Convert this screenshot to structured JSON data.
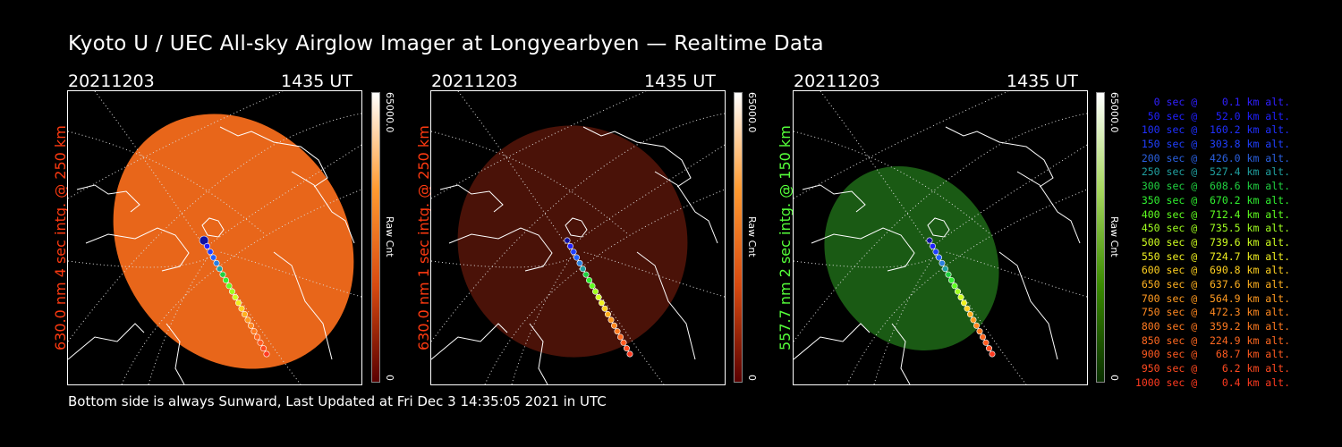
{
  "title": "Kyoto U / UEC All-sky Airglow Imager at Longyearbyen — Realtime Data",
  "footer": "Bottom side is always Sunward, Last Updated at Fri Dec  3 14:35:05 2021 in UTC",
  "panels": [
    {
      "date": "20211203",
      "time": "1435 UT",
      "ylabel": "630.0 nm 4 sec intg. @ 250 km",
      "label_color": "#ff3a10",
      "cbar_max": "65000.0",
      "cbar_label": "Raw Cnt",
      "cbar_min": "0",
      "cbar_colors": [
        "#5a0000",
        "#d84a10",
        "#ff9a30",
        "#ffffff"
      ],
      "disc_color": "#e8661a"
    },
    {
      "date": "20211203",
      "time": "1435 UT",
      "ylabel": "630.0 nm 1 sec intg. @ 250 km",
      "label_color": "#ff3a10",
      "cbar_max": "65000.0",
      "cbar_label": "Raw Cnt",
      "cbar_min": "0",
      "cbar_colors": [
        "#5a0000",
        "#d84a10",
        "#ff9a30",
        "#ffffff"
      ],
      "disc_color": "#4a1208"
    },
    {
      "date": "20211203",
      "time": "1435 UT",
      "ylabel": "557.7 nm 2 sec intg. @ 150 km",
      "label_color": "#55ff3a",
      "cbar_max": "65000.0",
      "cbar_label": "Raw Cnt",
      "cbar_min": "0",
      "cbar_colors": [
        "#0a3000",
        "#3a8a00",
        "#a8d860",
        "#ffffff"
      ],
      "disc_color": "#1a5a14"
    }
  ],
  "legend": [
    {
      "text": "   0 sec @    0.1 km alt.",
      "color": "#3020ff"
    },
    {
      "text": "  50 sec @   52.0 km alt.",
      "color": "#2020ff"
    },
    {
      "text": " 100 sec @  160.2 km alt.",
      "color": "#2030ff"
    },
    {
      "text": " 150 sec @  303.8 km alt.",
      "color": "#2040ff"
    },
    {
      "text": " 200 sec @  426.0 km alt.",
      "color": "#2a60e0"
    },
    {
      "text": " 250 sec @  527.4 km alt.",
      "color": "#20a0a0"
    },
    {
      "text": " 300 sec @  608.6 km alt.",
      "color": "#20d040"
    },
    {
      "text": " 350 sec @  670.2 km alt.",
      "color": "#30f030"
    },
    {
      "text": " 400 sec @  712.4 km alt.",
      "color": "#60ff20"
    },
    {
      "text": " 450 sec @  735.5 km alt.",
      "color": "#a0ff20"
    },
    {
      "text": " 500 sec @  739.6 km alt.",
      "color": "#d0ff20"
    },
    {
      "text": " 550 sec @  724.7 km alt.",
      "color": "#f0f020"
    },
    {
      "text": " 600 sec @  690.8 km alt.",
      "color": "#ffd020"
    },
    {
      "text": " 650 sec @  637.6 km alt.",
      "color": "#ffb020"
    },
    {
      "text": " 700 sec @  564.9 km alt.",
      "color": "#ff9a20"
    },
    {
      "text": " 750 sec @  472.3 km alt.",
      "color": "#ff8820"
    },
    {
      "text": " 800 sec @  359.2 km alt.",
      "color": "#ff7a20"
    },
    {
      "text": " 850 sec @  224.9 km alt.",
      "color": "#ff6820"
    },
    {
      "text": " 900 sec @   68.7 km alt.",
      "color": "#ff5a20"
    },
    {
      "text": " 950 sec @    6.2 km alt.",
      "color": "#ff4a20"
    },
    {
      "text": "1000 sec @    0.4 km alt.",
      "color": "#ff3a20"
    }
  ],
  "track_colors": [
    "#1010a0",
    "#2020ff",
    "#2040ff",
    "#2060ff",
    "#2a80e0",
    "#20a0a0",
    "#20d040",
    "#30f030",
    "#60ff20",
    "#a0ff20",
    "#d0ff20",
    "#f0f020",
    "#ffd020",
    "#ffb020",
    "#ff9a20",
    "#ff8820",
    "#ff7a20",
    "#ff6820",
    "#ff5a20",
    "#ff4a20",
    "#ff3a20"
  ]
}
